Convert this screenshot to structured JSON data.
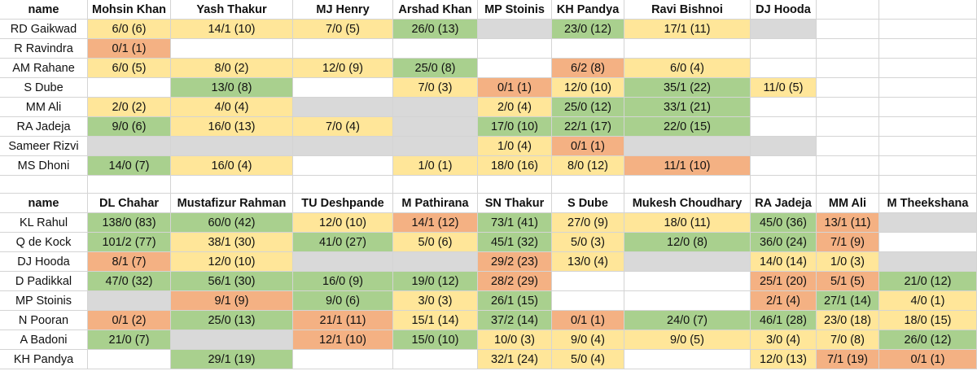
{
  "tables": [
    {
      "header": [
        "name",
        "Mohsin Khan",
        "Yash Thakur",
        "MJ Henry",
        "Arshad Khan",
        "MP Stoinis",
        "KH Pandya",
        "Ravi Bishnoi",
        "DJ Hooda"
      ],
      "rows": [
        {
          "name": "RD Gaikwad",
          "cells": [
            "6/0 (6)",
            "14/1 (10)",
            "7/0 (5)",
            "26/0 (13)",
            null,
            "23/0 (12)",
            "17/1 (11)",
            null
          ],
          "fills": [
            "#ffe699",
            "#ffe699",
            "#ffe699",
            "#a9d08e",
            "#d9d9d9",
            "#a9d08e",
            "#ffe699",
            "#d9d9d9"
          ]
        },
        {
          "name": "R Ravindra",
          "cells": [
            "0/1 (1)",
            null,
            null,
            null,
            null,
            null,
            null,
            null
          ],
          "fills": [
            "#f4b183",
            "#ffffff",
            "#ffffff",
            "#ffffff",
            "#ffffff",
            "#ffffff",
            "#ffffff",
            "#ffffff"
          ]
        },
        {
          "name": "AM Rahane",
          "cells": [
            "6/0 (5)",
            "8/0 (2)",
            "12/0 (9)",
            "25/0 (8)",
            null,
            "6/2 (8)",
            "6/0 (4)",
            null
          ],
          "fills": [
            "#ffe699",
            "#ffe699",
            "#ffe699",
            "#a9d08e",
            "#ffffff",
            "#f4b183",
            "#ffe699",
            "#ffffff"
          ]
        },
        {
          "name": "S Dube",
          "cells": [
            null,
            "13/0 (8)",
            null,
            "7/0 (3)",
            "0/1 (1)",
            "12/0 (10)",
            "35/1 (22)",
            "11/0 (5)"
          ],
          "fills": [
            "#ffffff",
            "#a9d08e",
            "#ffffff",
            "#ffe699",
            "#f4b183",
            "#ffe699",
            "#a9d08e",
            "#ffe699"
          ]
        },
        {
          "name": "MM Ali",
          "cells": [
            "2/0 (2)",
            "4/0 (4)",
            null,
            null,
            "2/0 (4)",
            "25/0 (12)",
            "33/1 (21)",
            null
          ],
          "fills": [
            "#ffe699",
            "#ffe699",
            "#d9d9d9",
            "#d9d9d9",
            "#ffe699",
            "#a9d08e",
            "#a9d08e",
            "#ffffff"
          ]
        },
        {
          "name": "RA Jadeja",
          "cells": [
            "9/0 (6)",
            "16/0 (13)",
            "7/0 (4)",
            null,
            "17/0 (10)",
            "22/1 (17)",
            "22/0 (15)",
            null
          ],
          "fills": [
            "#a9d08e",
            "#ffe699",
            "#ffe699",
            "#d9d9d9",
            "#a9d08e",
            "#a9d08e",
            "#a9d08e",
            "#ffffff"
          ]
        },
        {
          "name": "Sameer Rizvi",
          "cells": [
            null,
            null,
            null,
            null,
            "1/0 (4)",
            "0/1 (1)",
            null,
            null
          ],
          "fills": [
            "#d9d9d9",
            "#d9d9d9",
            "#d9d9d9",
            "#d9d9d9",
            "#ffe699",
            "#f4b183",
            "#d9d9d9",
            "#d9d9d9"
          ]
        },
        {
          "name": "MS Dhoni",
          "cells": [
            "14/0 (7)",
            "16/0 (4)",
            null,
            "1/0 (1)",
            "18/0 (16)",
            "8/0 (12)",
            "11/1 (10)",
            null
          ],
          "fills": [
            "#a9d08e",
            "#ffe699",
            "#ffffff",
            "#ffe699",
            "#ffe699",
            "#ffe699",
            "#f4b183",
            "#ffffff"
          ]
        }
      ]
    },
    {
      "header": [
        "name",
        "DL Chahar",
        "Mustafizur Rahman",
        "TU Deshpande",
        "M Pathirana",
        "SN Thakur",
        "S Dube",
        "Mukesh Choudhary",
        "RA Jadeja",
        "MM Ali",
        "M Theekshana"
      ],
      "rows": [
        {
          "name": "KL Rahul",
          "cells": [
            "138/0 (83)",
            "60/0 (42)",
            "12/0 (10)",
            "14/1 (12)",
            "73/1 (41)",
            "27/0 (9)",
            "18/0 (11)",
            "45/0 (36)",
            "13/1 (11)",
            null
          ],
          "fills": [
            "#a9d08e",
            "#a9d08e",
            "#ffe699",
            "#f4b183",
            "#a9d08e",
            "#ffe699",
            "#ffe699",
            "#a9d08e",
            "#f4b183",
            "#d9d9d9"
          ]
        },
        {
          "name": "Q de Kock",
          "cells": [
            "101/2 (77)",
            "38/1 (30)",
            "41/0 (27)",
            "5/0 (6)",
            "45/1 (32)",
            "5/0 (3)",
            "12/0 (8)",
            "36/0 (24)",
            "7/1 (9)",
            null
          ],
          "fills": [
            "#a9d08e",
            "#ffe699",
            "#a9d08e",
            "#ffe699",
            "#a9d08e",
            "#ffe699",
            "#a9d08e",
            "#a9d08e",
            "#f4b183",
            "#ffffff"
          ]
        },
        {
          "name": "DJ Hooda",
          "cells": [
            "8/1 (7)",
            "12/0 (10)",
            null,
            null,
            "29/2 (23)",
            "13/0 (4)",
            null,
            "14/0 (14)",
            "1/0 (3)",
            null
          ],
          "fills": [
            "#f4b183",
            "#ffe699",
            "#d9d9d9",
            "#d9d9d9",
            "#f4b183",
            "#ffe699",
            "#d9d9d9",
            "#ffe699",
            "#ffe699",
            "#d9d9d9"
          ]
        },
        {
          "name": "D Padikkal",
          "cells": [
            "47/0 (32)",
            "56/1 (30)",
            "16/0 (9)",
            "19/0 (12)",
            "28/2 (29)",
            null,
            null,
            "25/1 (20)",
            "5/1 (5)",
            "21/0 (12)"
          ],
          "fills": [
            "#a9d08e",
            "#a9d08e",
            "#a9d08e",
            "#a9d08e",
            "#f4b183",
            "#ffffff",
            "#ffffff",
            "#f4b183",
            "#f4b183",
            "#a9d08e"
          ]
        },
        {
          "name": "MP Stoinis",
          "cells": [
            null,
            "9/1 (9)",
            "9/0 (6)",
            "3/0 (3)",
            "26/1 (15)",
            null,
            null,
            "2/1 (4)",
            "27/1 (14)",
            "4/0 (1)"
          ],
          "fills": [
            "#d9d9d9",
            "#f4b183",
            "#a9d08e",
            "#ffe699",
            "#a9d08e",
            "#ffffff",
            "#ffffff",
            "#f4b183",
            "#a9d08e",
            "#ffe699"
          ]
        },
        {
          "name": "N Pooran",
          "cells": [
            "0/1 (2)",
            "25/0 (13)",
            "21/1 (11)",
            "15/1 (14)",
            "37/2 (14)",
            "0/1 (1)",
            "24/0 (7)",
            "46/1 (28)",
            "23/0 (18)",
            "18/0 (15)"
          ],
          "fills": [
            "#f4b183",
            "#a9d08e",
            "#f4b183",
            "#ffe699",
            "#a9d08e",
            "#f4b183",
            "#a9d08e",
            "#a9d08e",
            "#ffe699",
            "#ffe699"
          ]
        },
        {
          "name": "A Badoni",
          "cells": [
            "21/0 (7)",
            null,
            "12/1 (10)",
            "15/0 (10)",
            "10/0 (3)",
            "9/0 (4)",
            "9/0 (5)",
            "3/0 (4)",
            "7/0 (8)",
            "26/0 (12)"
          ],
          "fills": [
            "#a9d08e",
            "#d9d9d9",
            "#f4b183",
            "#a9d08e",
            "#ffe699",
            "#ffe699",
            "#ffe699",
            "#ffe699",
            "#ffe699",
            "#a9d08e"
          ]
        },
        {
          "name": "KH Pandya",
          "cells": [
            null,
            "29/1 (19)",
            null,
            null,
            "32/1 (24)",
            "5/0 (4)",
            null,
            "12/0 (13)",
            "7/1 (19)",
            "0/1 (1)"
          ],
          "fills": [
            "#ffffff",
            "#a9d08e",
            "#ffffff",
            "#ffffff",
            "#ffe699",
            "#ffe699",
            "#ffffff",
            "#ffe699",
            "#f4b183",
            "#f4b183"
          ]
        }
      ]
    }
  ]
}
